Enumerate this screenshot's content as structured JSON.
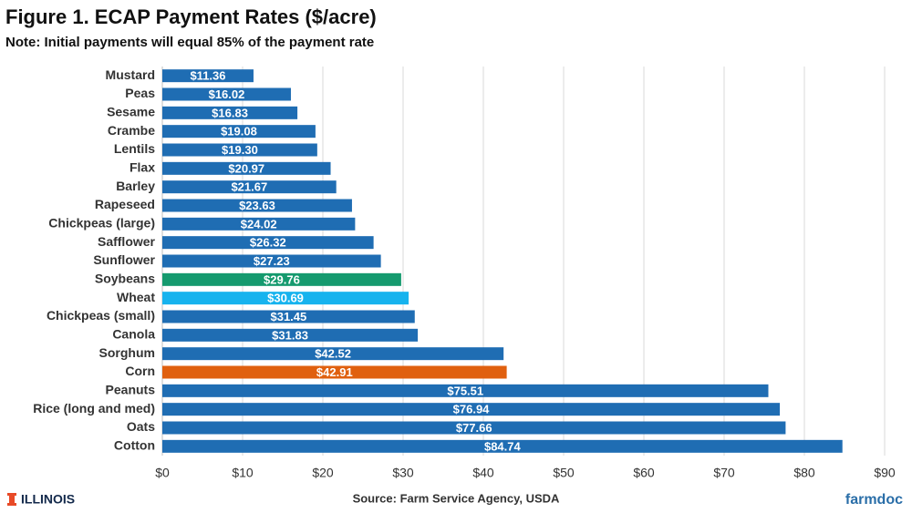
{
  "chart_data": {
    "type": "barh",
    "title": "Figure 1. ECAP Payment Rates ($/acre)",
    "subtitle": "Note: Initial payments will equal 85% of the payment rate",
    "source": "Source: Farm Service Agency, USDA",
    "categories": [
      "Mustard",
      "Peas",
      "Sesame",
      "Crambe",
      "Lentils",
      "Flax",
      "Barley",
      "Rapeseed",
      "Chickpeas (large)",
      "Safflower",
      "Sunflower",
      "Soybeans",
      "Wheat",
      "Chickpeas (small)",
      "Canola",
      "Sorghum",
      "Corn",
      "Peanuts",
      "Rice (long and med)",
      "Oats",
      "Cotton"
    ],
    "values": [
      11.36,
      16.02,
      16.83,
      19.08,
      19.3,
      20.97,
      21.67,
      23.63,
      24.02,
      26.32,
      27.23,
      29.76,
      30.69,
      31.45,
      31.83,
      42.52,
      42.91,
      75.51,
      76.94,
      77.66,
      84.74
    ],
    "value_labels": [
      "$11.36",
      "$16.02",
      "$16.83",
      "$19.08",
      "$19.30",
      "$20.97",
      "$21.67",
      "$23.63",
      "$24.02",
      "$26.32",
      "$27.23",
      "$29.76",
      "$30.69",
      "$31.45",
      "$31.83",
      "$42.52",
      "$42.91",
      "$75.51",
      "$76.94",
      "$77.66",
      "$84.74"
    ],
    "colors": [
      "#1f6db3",
      "#1f6db3",
      "#1f6db3",
      "#1f6db3",
      "#1f6db3",
      "#1f6db3",
      "#1f6db3",
      "#1f6db3",
      "#1f6db3",
      "#1f6db3",
      "#1f6db3",
      "#159a6e",
      "#17b3ee",
      "#1f6db3",
      "#1f6db3",
      "#1f6db3",
      "#e0600f",
      "#1f6db3",
      "#1f6db3",
      "#1f6db3",
      "#1f6db3"
    ],
    "xlim": [
      0,
      90
    ],
    "xticks": [
      {
        "value": 0,
        "label": "$0"
      },
      {
        "value": 10,
        "label": "$10"
      },
      {
        "value": 20,
        "label": "$20"
      },
      {
        "value": 30,
        "label": "$30"
      },
      {
        "value": 40,
        "label": "$40"
      },
      {
        "value": 50,
        "label": "$50"
      },
      {
        "value": 60,
        "label": "$60"
      },
      {
        "value": 70,
        "label": "$70"
      },
      {
        "value": 80,
        "label": "$80"
      },
      {
        "value": 90,
        "label": "$90"
      }
    ],
    "grid": true
  },
  "footer": {
    "logo": "ILLINOIS",
    "brand": "farmdoc"
  }
}
